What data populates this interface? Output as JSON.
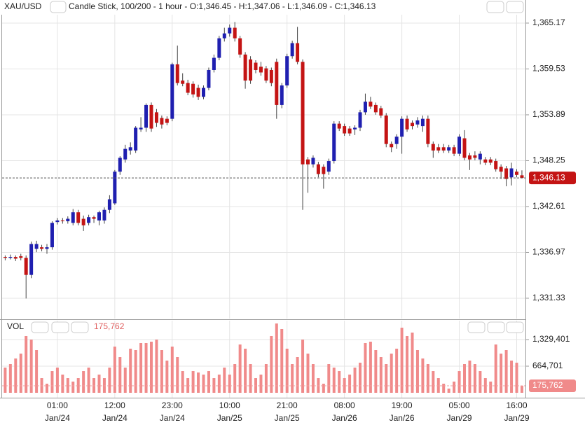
{
  "chart_data": {
    "type": "candlestick",
    "symbol": "XAU/USD",
    "header": "Candle Stick, 100/200 - 1 hour - O:1,346.45 - H:1,347.06 - L:1,346.09 - C:1,346.13",
    "categories": [
      null,
      null,
      null,
      null,
      null,
      null,
      null,
      null,
      null,
      null,
      "01:00",
      null,
      null,
      null,
      null,
      null,
      null,
      null,
      null,
      null,
      null,
      "12:00",
      null,
      null,
      null,
      null,
      null,
      null,
      null,
      null,
      null,
      null,
      "23:00",
      null,
      null,
      null,
      null,
      null,
      null,
      null,
      null,
      null,
      null,
      "10:00",
      null,
      null,
      null,
      null,
      null,
      null,
      null,
      null,
      null,
      null,
      "21:00",
      null,
      null,
      null,
      null,
      null,
      null,
      null,
      null,
      null,
      null,
      "08:00",
      null,
      null,
      null,
      null,
      null,
      null,
      null,
      null,
      null,
      null,
      "19:00",
      null,
      null,
      null,
      null,
      null,
      null,
      null,
      null,
      null,
      null,
      "05:00",
      null,
      null,
      null,
      null,
      null,
      null,
      null,
      null,
      null,
      null,
      "16:00",
      null
    ],
    "category_dates": [
      null,
      null,
      null,
      null,
      null,
      null,
      null,
      null,
      null,
      null,
      "Jan/24",
      null,
      null,
      null,
      null,
      null,
      null,
      null,
      null,
      null,
      null,
      "Jan/24",
      null,
      null,
      null,
      null,
      null,
      null,
      null,
      null,
      null,
      null,
      "Jan/24",
      null,
      null,
      null,
      null,
      null,
      null,
      null,
      null,
      null,
      null,
      "Jan/25",
      null,
      null,
      null,
      null,
      null,
      null,
      null,
      null,
      null,
      null,
      "Jan/25",
      null,
      null,
      null,
      null,
      null,
      null,
      null,
      null,
      null,
      null,
      "Jan/26",
      null,
      null,
      null,
      null,
      null,
      null,
      null,
      null,
      null,
      null,
      "Jan/26",
      null,
      null,
      null,
      null,
      null,
      null,
      null,
      null,
      null,
      null,
      "Jan/29",
      null,
      null,
      null,
      null,
      null,
      null,
      null,
      null,
      null,
      null,
      "Jan/29",
      null
    ],
    "open": [
      1336.4,
      1336.3,
      1336.4,
      1336.5,
      1336.3,
      1334.2,
      1337.4,
      1337.6,
      1337.4,
      1337.6,
      1340.7,
      1340.9,
      1340.8,
      1340.6,
      1341.9,
      1341.1,
      1340.6,
      1341.3,
      1340.9,
      1340.9,
      1342.2,
      1343.0,
      1346.9,
      1348.4,
      1349.5,
      1349.5,
      1352.1,
      1352.3,
      1355.1,
      1354.2,
      1353.5,
      1353.4,
      1353.4,
      1360.1,
      1358.1,
      1357.8,
      1357.7,
      1357.2,
      1356.1,
      1357.2,
      1359.4,
      1360.9,
      1363.3,
      1363.9,
      1364.6,
      1363.3,
      1361.3,
      1360.7,
      1360.3,
      1359.8,
      1359.6,
      1359.4,
      1360.4,
      1355.1,
      1357.5,
      1361.1,
      1362.7,
      1360.4,
      1348.4,
      1347.8,
      1347.8,
      1347.5,
      1346.9,
      1348.2,
      1352.8,
      1352.5,
      1352.2,
      1352.1,
      1352.3,
      1354.2,
      1355.5,
      1355.1,
      1354.7,
      1353.8,
      1350.3,
      1350.3,
      1351.2,
      1353.4,
      1352.9,
      1352.7,
      1352.5,
      1353.4,
      1350.3,
      1349.9,
      1349.9,
      1349.5,
      1349.9,
      1349.1,
      1351.0,
      1348.9,
      1348.9,
      1348.4,
      1348.4,
      1348.4,
      1348.2,
      1347.5,
      1347.3,
      1346.2,
      1346.9,
      1346.45
    ],
    "high": [
      1336.6,
      1336.7,
      1336.6,
      1336.8,
      1336.6,
      1338.3,
      1338.4,
      1337.9,
      1338.0,
      1340.8,
      1341.2,
      1341.2,
      1341.4,
      1342.3,
      1342.2,
      1341.5,
      1341.6,
      1341.5,
      1342.1,
      1342.5,
      1344.0,
      1347.1,
      1348.8,
      1350.2,
      1350.5,
      1352.5,
      1353.6,
      1355.3,
      1355.4,
      1354.6,
      1353.8,
      1353.7,
      1360.3,
      1362.4,
      1359.0,
      1358.2,
      1358.0,
      1357.6,
      1357.5,
      1359.7,
      1361.3,
      1363.6,
      1364.6,
      1365.0,
      1365.3,
      1363.6,
      1361.6,
      1361.1,
      1360.6,
      1360.4,
      1359.9,
      1359.7,
      1360.8,
      1357.8,
      1361.4,
      1363.0,
      1364.7,
      1360.7,
      1348.7,
      1348.9,
      1348.1,
      1347.8,
      1348.5,
      1353.1,
      1353.1,
      1352.8,
      1352.5,
      1352.6,
      1354.5,
      1356.5,
      1356.1,
      1355.4,
      1355.0,
      1354.1,
      1350.6,
      1351.5,
      1353.7,
      1353.8,
      1353.2,
      1353.6,
      1353.8,
      1353.8,
      1350.6,
      1350.3,
      1350.3,
      1350.2,
      1350.2,
      1351.5,
      1352.0,
      1349.2,
      1349.4,
      1349.4,
      1348.7,
      1348.7,
      1348.5,
      1347.8,
      1347.6,
      1348.0,
      1347.2,
      1347.06
    ],
    "low": [
      1336.0,
      1336.1,
      1335.9,
      1336.0,
      1331.3,
      1333.8,
      1337.0,
      1337.1,
      1336.8,
      1337.3,
      1340.4,
      1340.5,
      1340.5,
      1340.3,
      1340.3,
      1339.6,
      1340.3,
      1340.6,
      1340.3,
      1340.5,
      1341.8,
      1342.8,
      1346.5,
      1348.0,
      1349.0,
      1349.2,
      1351.8,
      1351.8,
      1351.8,
      1352.4,
      1352.2,
      1352.6,
      1353.1,
      1357.5,
      1357.4,
      1356.3,
      1356.0,
      1355.7,
      1355.8,
      1356.9,
      1359.1,
      1360.6,
      1362.9,
      1363.5,
      1362.9,
      1360.9,
      1357.1,
      1357.7,
      1359.0,
      1358.7,
      1357.8,
      1357.4,
      1353.4,
      1354.7,
      1357.2,
      1360.8,
      1360.1,
      1342.2,
      1344.3,
      1347.4,
      1346.2,
      1344.8,
      1346.5,
      1347.9,
      1351.9,
      1351.3,
      1351.3,
      1351.4,
      1351.9,
      1353.9,
      1354.6,
      1353.9,
      1353.5,
      1349.9,
      1349.3,
      1349.7,
      1349.1,
      1351.8,
      1352.1,
      1352.3,
      1351.8,
      1349.9,
      1348.6,
      1349.2,
      1349.2,
      1349.2,
      1348.8,
      1348.8,
      1348.3,
      1347.1,
      1348.3,
      1347.8,
      1347.7,
      1347.7,
      1346.9,
      1346.0,
      1345.1,
      1345.2,
      1346.2,
      1346.09
    ],
    "close": [
      1336.3,
      1336.4,
      1336.2,
      1336.3,
      1334.2,
      1338.0,
      1338.0,
      1337.4,
      1337.6,
      1340.6,
      1340.9,
      1340.8,
      1341.1,
      1341.9,
      1340.6,
      1340.3,
      1341.3,
      1341.1,
      1341.9,
      1342.2,
      1343.5,
      1346.9,
      1348.6,
      1349.7,
      1349.9,
      1352.3,
      1352.3,
      1355.1,
      1352.2,
      1352.9,
      1352.7,
      1352.9,
      1360.1,
      1357.8,
      1357.7,
      1356.6,
      1356.4,
      1356.1,
      1357.2,
      1359.4,
      1360.9,
      1363.3,
      1363.9,
      1364.6,
      1363.3,
      1361.3,
      1358.1,
      1358.1,
      1359.4,
      1359.1,
      1358.1,
      1357.8,
      1355.1,
      1357.5,
      1361.1,
      1362.7,
      1360.4,
      1347.8,
      1347.8,
      1348.6,
      1346.6,
      1346.6,
      1348.2,
      1352.8,
      1352.2,
      1351.6,
      1351.6,
      1352.3,
      1354.2,
      1355.5,
      1354.9,
      1354.2,
      1353.8,
      1350.3,
      1349.9,
      1351.2,
      1353.4,
      1352.1,
      1352.5,
      1353.2,
      1353.4,
      1350.3,
      1349.5,
      1349.5,
      1349.5,
      1349.9,
      1349.1,
      1351.2,
      1348.6,
      1348.4,
      1348.6,
      1349.1,
      1348.0,
      1348.0,
      1347.2,
      1346.9,
      1346.0,
      1347.3,
      1346.5,
      1346.13
    ],
    "last_label": "1,346.13",
    "up_color": "#1f1fb0",
    "down_color": "#c41414",
    "ylim": [
      1328.83,
      1367.32
    ],
    "yticks": [
      {
        "value": 1365.17,
        "label": "1,365.17"
      },
      {
        "value": 1359.53,
        "label": "1,359.53"
      },
      {
        "value": 1353.89,
        "label": "1,353.89"
      },
      {
        "value": 1348.25,
        "label": "1,348.25"
      },
      {
        "value": 1342.61,
        "label": "1,342.61"
      },
      {
        "value": 1336.97,
        "label": "1,336.97"
      },
      {
        "value": 1331.33,
        "label": "1,331.33"
      }
    ],
    "grid": true,
    "volume_label": "VOL",
    "volume": [
      630000,
      717000,
      857000,
      979000,
      1417000,
      1329000,
      1067000,
      367000,
      227000,
      542000,
      630000,
      455000,
      367000,
      280000,
      367000,
      542000,
      630000,
      367000,
      455000,
      367000,
      630000,
      1154000,
      892000,
      630000,
      1102000,
      1067000,
      1242000,
      1242000,
      1277000,
      1329000,
      1067000,
      805000,
      1154000,
      892000,
      542000,
      367000,
      542000,
      507000,
      455000,
      542000,
      367000,
      455000,
      630000,
      455000,
      717000,
      1207000,
      1102000,
      717000,
      367000,
      455000,
      717000,
      1417000,
      1732000,
      1592000,
      1102000,
      717000,
      892000,
      1329000,
      979000,
      717000,
      367000,
      227000,
      717000,
      630000,
      542000,
      367000,
      455000,
      630000,
      752000,
      1242000,
      1277000,
      1067000,
      892000,
      717000,
      979000,
      1102000,
      1627000,
      1417000,
      1504000,
      1067000,
      857000,
      717000,
      542000,
      367000,
      227000,
      105000,
      280000,
      542000,
      717000,
      805000,
      717000,
      542000,
      367000,
      280000,
      1207000,
      979000,
      1067000,
      805000,
      752000,
      175762
    ],
    "last_volume_label": "175,762",
    "volume_color": "#f08a8a",
    "y2lim": [
      -122444,
      1801688
    ],
    "y2ticks": [
      {
        "value": 1329401,
        "label": "1,329,401"
      },
      {
        "value": 664701,
        "label": "664,701"
      }
    ]
  }
}
